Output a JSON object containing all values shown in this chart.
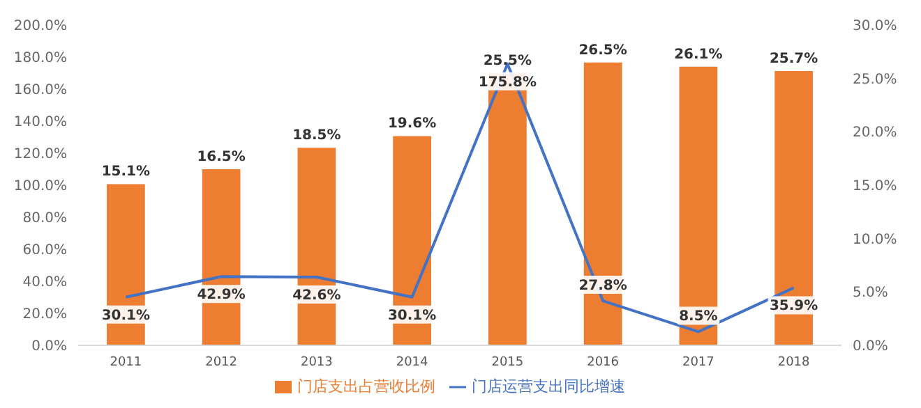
{
  "chart_data": {
    "type": "bar",
    "categories": [
      "2011",
      "2012",
      "2013",
      "2014",
      "2015",
      "2016",
      "2017",
      "2018"
    ],
    "series": [
      {
        "name": "门店支出占营收比例",
        "axis": "y2",
        "color": "#ed7d31",
        "values": [
          15.1,
          16.5,
          18.5,
          19.6,
          25.5,
          26.5,
          26.1,
          25.7
        ],
        "value_labels": [
          "15.1%",
          "16.5%",
          "18.5%",
          "19.6%",
          "25.5%",
          "26.5%",
          "26.1%",
          "25.7%"
        ]
      },
      {
        "name": "门店运营支出同比增速",
        "type": "line",
        "axis": "y",
        "color": "#4472c4",
        "values": [
          30.1,
          42.9,
          42.6,
          30.1,
          175.8,
          27.8,
          8.5,
          35.9
        ],
        "value_labels": [
          "30.1%",
          "42.9%",
          "42.6%",
          "30.1%",
          "175.8%",
          "27.8%",
          "8.5%",
          "35.9%"
        ]
      }
    ],
    "ylim": [
      0,
      200
    ],
    "yticks": [
      {
        "value": 0,
        "label": "0.0%"
      },
      {
        "value": 20,
        "label": "20.0%"
      },
      {
        "value": 40,
        "label": "40.0%"
      },
      {
        "value": 60,
        "label": "60.0%"
      },
      {
        "value": 80,
        "label": "80.0%"
      },
      {
        "value": 100,
        "label": "100.0%"
      },
      {
        "value": 120,
        "label": "120.0%"
      },
      {
        "value": 140,
        "label": "140.0%"
      },
      {
        "value": 160,
        "label": "160.0%"
      },
      {
        "value": 180,
        "label": "180.0%"
      },
      {
        "value": 200,
        "label": "200.0%"
      }
    ],
    "y2lim": [
      0,
      30
    ],
    "y2ticks": [
      {
        "value": 0,
        "label": "0.0%"
      },
      {
        "value": 5,
        "label": "5.0%"
      },
      {
        "value": 10,
        "label": "10.0%"
      },
      {
        "value": 15,
        "label": "15.0%"
      },
      {
        "value": 20,
        "label": "20.0%"
      },
      {
        "value": 25,
        "label": "25.0%"
      },
      {
        "value": 30,
        "label": "30.0%"
      }
    ],
    "grid": false,
    "legend": "bottom",
    "marker": "none",
    "line_style": "solid"
  }
}
